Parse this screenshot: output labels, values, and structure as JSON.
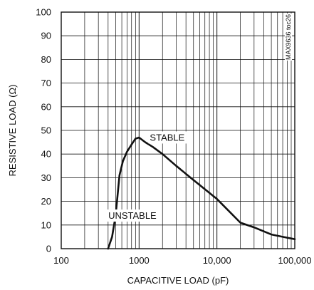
{
  "chart_data": {
    "type": "line",
    "xlabel": "CAPACITIVE LOAD (pF)",
    "ylabel": "RESISTIVE LOAD (Ω)",
    "x_scale": "log",
    "xlim": [
      100,
      100000
    ],
    "ylim": [
      0,
      100
    ],
    "x_ticks": [
      100,
      1000,
      10000,
      100000
    ],
    "x_tick_labels": [
      "100",
      "1000",
      "10,000",
      "100,000"
    ],
    "y_ticks": [
      0,
      10,
      20,
      30,
      40,
      50,
      60,
      70,
      80,
      90,
      100
    ],
    "y_tick_labels": [
      "0",
      "10",
      "20",
      "30",
      "40",
      "50",
      "60",
      "70",
      "80",
      "90",
      "100"
    ],
    "grid": true,
    "annotations": [
      {
        "text": "STABLE",
        "x": 2300,
        "y": 47
      },
      {
        "text": "UNSTABLE",
        "x": 820,
        "y": 14
      }
    ],
    "figure_id": "MAX9636 toc26",
    "series": [
      {
        "points": [
          [
            400,
            0
          ],
          [
            450,
            5
          ],
          [
            500,
            14
          ],
          [
            560,
            31
          ],
          [
            620,
            37
          ],
          [
            700,
            41
          ],
          [
            800,
            44
          ],
          [
            900,
            46.5
          ],
          [
            1000,
            47
          ],
          [
            1200,
            45
          ],
          [
            1500,
            43
          ],
          [
            2000,
            40
          ],
          [
            3000,
            35
          ],
          [
            5000,
            29
          ],
          [
            10000,
            21
          ],
          [
            20000,
            11
          ],
          [
            30000,
            9
          ],
          [
            50000,
            6
          ],
          [
            70000,
            5
          ],
          [
            100000,
            4
          ]
        ]
      }
    ]
  }
}
